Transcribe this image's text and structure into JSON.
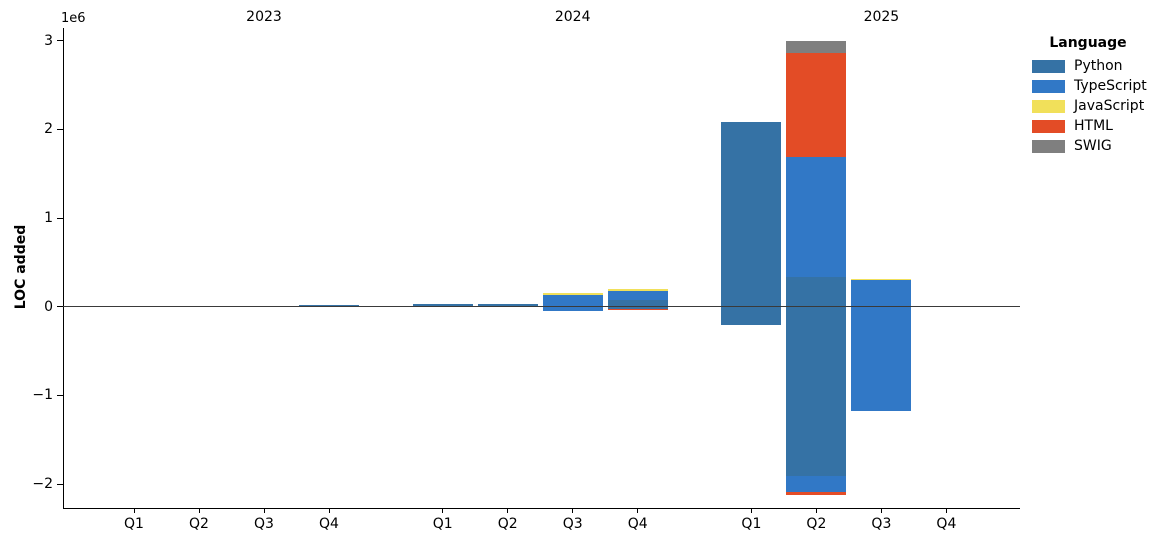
{
  "chart_data": {
    "type": "bar",
    "stacked": true,
    "title": "",
    "ylabel": "LOC added",
    "value_scale_label": "1e6",
    "legend_title": "Language",
    "legend_position": "upper right, outside plot",
    "grid": false,
    "ylim": [
      -2270000,
      3140000
    ],
    "yticks": [
      3000000,
      2000000,
      1000000,
      0,
      -1000000,
      -2000000
    ],
    "years": [
      "2023",
      "2024",
      "2025"
    ],
    "quarters": [
      "Q1",
      "Q2",
      "Q3",
      "Q4"
    ],
    "categories": [
      "2023-Q1",
      "2023-Q2",
      "2023-Q3",
      "2023-Q4",
      "2024-Q1",
      "2024-Q2",
      "2024-Q3",
      "2024-Q4",
      "2025-Q1",
      "2025-Q2",
      "2025-Q3",
      "2025-Q4"
    ],
    "series": [
      {
        "name": "Python",
        "color": "#3572A5",
        "pos": [
          0,
          0,
          0,
          20000,
          25000,
          35000,
          10000,
          75000,
          2080000,
          340000,
          0,
          0
        ],
        "neg": [
          0,
          0,
          0,
          0,
          0,
          0,
          0,
          -25000,
          -210000,
          -1910000,
          0,
          0
        ]
      },
      {
        "name": "TypeScript",
        "color": "#3178C6",
        "pos": [
          0,
          0,
          0,
          0,
          0,
          0,
          125000,
          100000,
          0,
          1350000,
          300000,
          0
        ],
        "neg": [
          0,
          0,
          0,
          0,
          0,
          0,
          -50000,
          0,
          0,
          -175000,
          -1180000,
          0
        ]
      },
      {
        "name": "JavaScript",
        "color": "#F1E05A",
        "pos": [
          0,
          0,
          0,
          0,
          0,
          0,
          15000,
          20000,
          0,
          0,
          17000,
          0
        ],
        "neg": [
          0,
          0,
          0,
          0,
          0,
          0,
          0,
          0,
          0,
          0,
          0,
          0
        ]
      },
      {
        "name": "HTML",
        "color": "#E34C26",
        "pos": [
          0,
          0,
          0,
          0,
          0,
          0,
          0,
          0,
          0,
          1170000,
          0,
          0
        ],
        "neg": [
          0,
          0,
          0,
          0,
          0,
          0,
          0,
          -17000,
          0,
          -35000,
          0,
          0
        ]
      },
      {
        "name": "SWIG",
        "color": "#7F7F7F",
        "pos": [
          0,
          0,
          0,
          0,
          0,
          0,
          0,
          0,
          0,
          140000,
          0,
          0
        ],
        "neg": [
          0,
          0,
          0,
          0,
          0,
          0,
          0,
          0,
          0,
          0,
          0,
          0
        ]
      }
    ]
  }
}
